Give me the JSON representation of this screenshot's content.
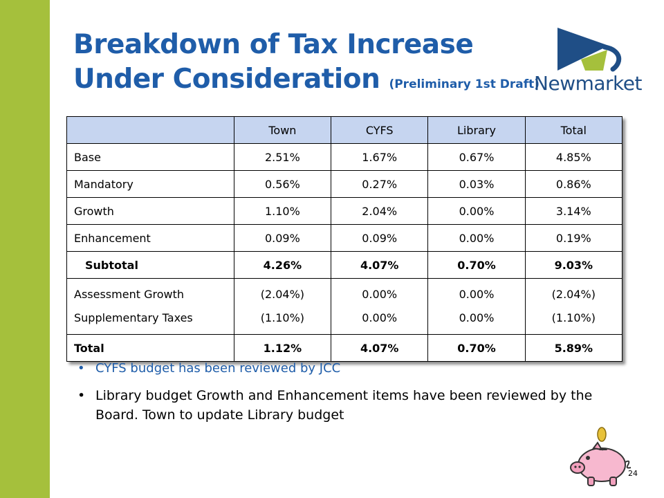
{
  "slide": {
    "title_line1": "Breakdown of Tax Increase",
    "title_line2": "Under Consideration",
    "title_note": "(Preliminary 1st Draft)",
    "logo_text": "Newmarket",
    "page_number": "24",
    "colors": {
      "side_bar": "#a5c03c",
      "title": "#1f5da9",
      "header_fill": "#c6d5f0"
    }
  },
  "table": {
    "headers": [
      "",
      "Town",
      "CYFS",
      "Library",
      "Total"
    ],
    "rows": [
      {
        "label": "Base",
        "values": [
          "2.51%",
          "1.67%",
          "0.67%",
          "4.85%"
        ]
      },
      {
        "label": "Mandatory",
        "values": [
          "0.56%",
          "0.27%",
          "0.03%",
          "0.86%"
        ]
      },
      {
        "label": "Growth",
        "values": [
          "1.10%",
          "2.04%",
          "0.00%",
          "3.14%"
        ]
      },
      {
        "label": "Enhancement",
        "values": [
          "0.09%",
          "0.09%",
          "0.00%",
          "0.19%"
        ]
      },
      {
        "label": "Subtotal",
        "values": [
          "4.26%",
          "4.07%",
          "0.70%",
          "9.03%"
        ]
      },
      {
        "label": "Assessment Growth",
        "values": [
          "(2.04%)",
          "0.00%",
          "0.00%",
          "(2.04%)"
        ]
      },
      {
        "label": "Supplementary Taxes",
        "values": [
          "(1.10%)",
          "0.00%",
          "0.00%",
          "(1.10%)"
        ]
      },
      {
        "label": "Total",
        "values": [
          "1.12%",
          "4.07%",
          "0.70%",
          "5.89%"
        ]
      }
    ]
  },
  "bullets": [
    "CYFS budget has been reviewed by JCC",
    "Library budget Growth and Enhancement items have been reviewed by the Board.  Town to update Library  budget"
  ]
}
